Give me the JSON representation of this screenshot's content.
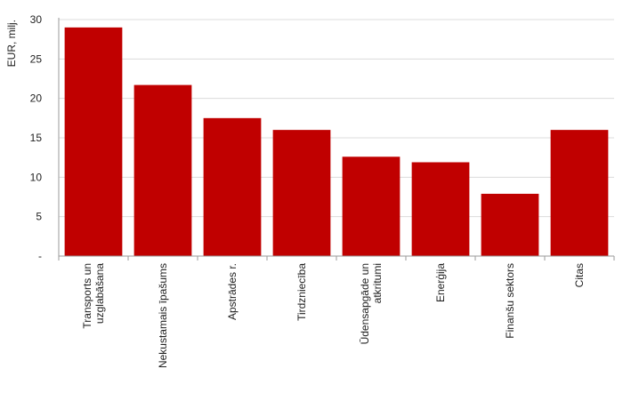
{
  "chart_data": {
    "type": "bar",
    "ylabel": "EUR, milj.",
    "xlabel": "",
    "ylim": [
      0,
      30
    ],
    "yticks": [
      0,
      5,
      10,
      15,
      20,
      25,
      30
    ],
    "ytick_labels": [
      "-",
      "5",
      "10",
      "15",
      "20",
      "25",
      "30"
    ],
    "grid": true,
    "legend": "none",
    "bar_color": "#c00000",
    "categories": [
      [
        "Transports un",
        "uzglabāšana"
      ],
      [
        "Nekustamais īpašums"
      ],
      [
        "Apstrādes r."
      ],
      [
        "Tirdzniecība"
      ],
      [
        "Ūdensapgāde un",
        "atkritumi"
      ],
      [
        "Enerģija"
      ],
      [
        "Finanšu sektors"
      ],
      [
        "Citas"
      ]
    ],
    "values": [
      29,
      21.7,
      17.5,
      16,
      12.6,
      11.9,
      7.9,
      16
    ]
  }
}
